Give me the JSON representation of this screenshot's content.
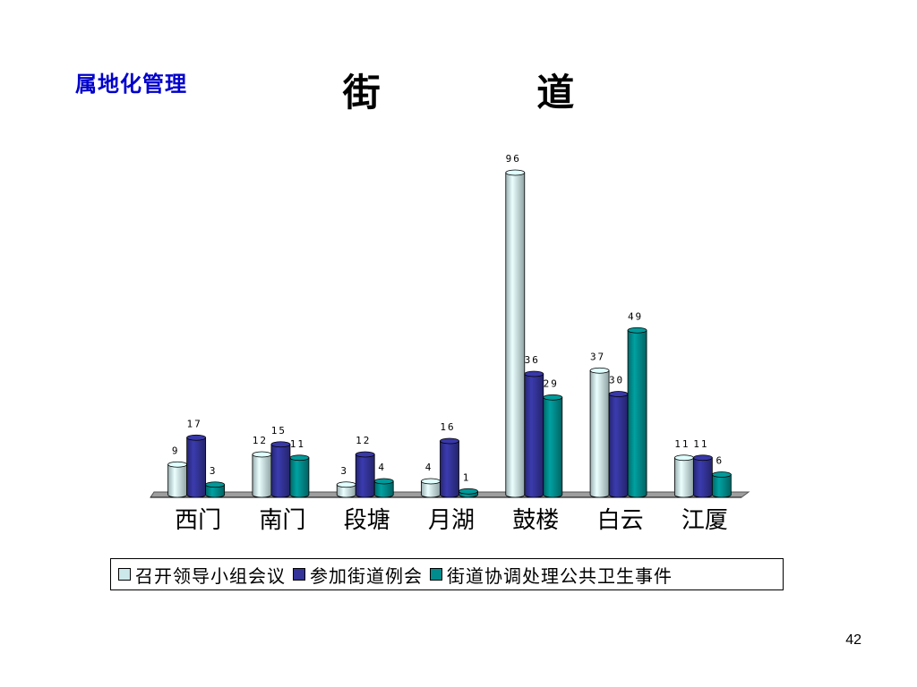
{
  "slide": {
    "corner_label": "属地化管理",
    "page_number": "42"
  },
  "chart_data": {
    "type": "bar",
    "title": "街 道",
    "xlabel": "",
    "ylabel": "",
    "ylim": [
      0,
      100
    ],
    "grid": false,
    "legend_placement": "bottom",
    "categories": [
      "西门",
      "南门",
      "段塘",
      "月湖",
      "鼓楼",
      "白云",
      "江厦"
    ],
    "series": [
      {
        "name": "召开领导小组会议",
        "color": "#cce8ea",
        "values": [
          9,
          12,
          3,
          4,
          96,
          37,
          11
        ]
      },
      {
        "name": "参加街道例会",
        "color": "#333399",
        "values": [
          17,
          15,
          12,
          16,
          36,
          30,
          11
        ]
      },
      {
        "name": "街道协调处理公共卫生事件",
        "color": "#008c8c",
        "values": [
          3,
          11,
          4,
          1,
          29,
          49,
          6
        ]
      }
    ]
  }
}
